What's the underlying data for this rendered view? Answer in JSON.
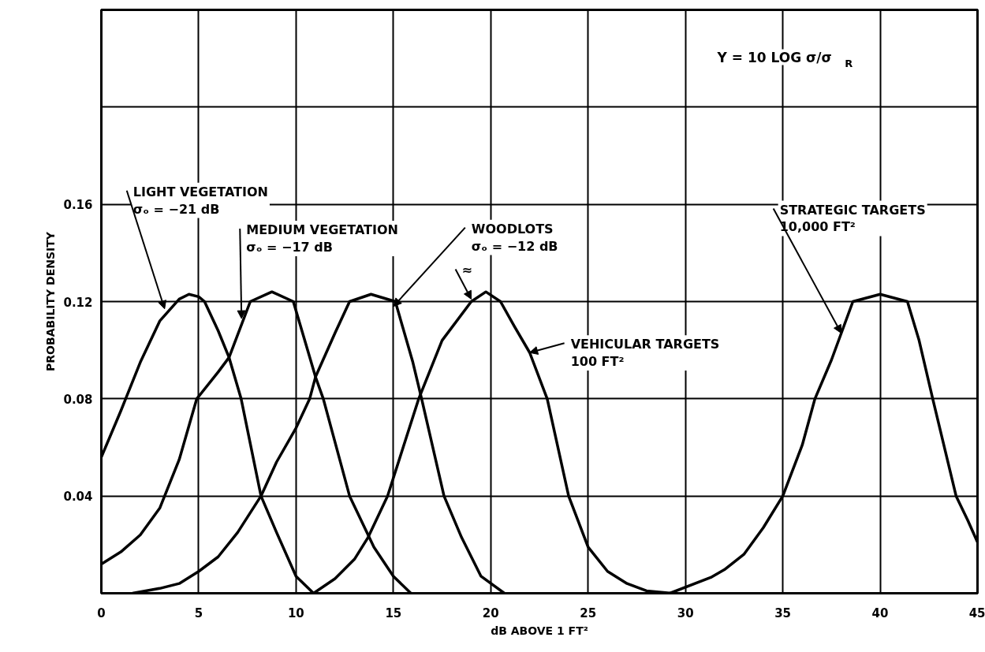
{
  "chart_data": {
    "type": "line",
    "xlabel": "dB ABOVE 1 FT²",
    "ylabel": "PROBABILITY DENSITY",
    "xlim": [
      0,
      45
    ],
    "ylim": [
      0,
      0.24
    ],
    "xticks": [
      0,
      5,
      10,
      15,
      20,
      25,
      30,
      35,
      40,
      45
    ],
    "yticks": [
      {
        "value": 0,
        "label": null
      },
      0.04,
      0.08,
      0.12,
      0.16,
      {
        "value": 0.2,
        "label": null
      },
      {
        "value": 0.24,
        "label": null
      }
    ],
    "grid": true,
    "line_style": "solid",
    "marker": "none",
    "series": [
      {
        "color": "#000000",
        "x": [
          0,
          1,
          2,
          3,
          4,
          4.5,
          5,
          5.3,
          6,
          6.56,
          7.18,
          8.2,
          9,
          10,
          10.9
        ],
        "values": [
          0.056,
          0.075,
          0.095,
          0.112,
          0.121,
          0.123,
          0.122,
          0.12,
          0.108,
          0.097,
          0.08,
          0.04,
          0.025,
          0.007,
          0
        ]
      },
      {
        "color": "#000000",
        "x": [
          0,
          1,
          2,
          3,
          3.25,
          4,
          4.9,
          6,
          6.56,
          7.65,
          8.76,
          9.86,
          11,
          11.4,
          12.75,
          14,
          15,
          15.9
        ],
        "values": [
          0.012,
          0.017,
          0.024,
          0.035,
          0.04,
          0.055,
          0.08,
          0.091,
          0.097,
          0.12,
          0.124,
          0.12,
          0.089,
          0.08,
          0.04,
          0.019,
          0.007,
          0
        ]
      },
      {
        "color": "#000000",
        "x": [
          1.6,
          3,
          4,
          5,
          6,
          7,
          8.2,
          9,
          10,
          10.7,
          11,
          12,
          12.75,
          13.85,
          15.1,
          16,
          16.45,
          17.6,
          18.5,
          19.5,
          20.7
        ],
        "values": [
          0,
          0.002,
          0.004,
          0.009,
          0.015,
          0.025,
          0.04,
          0.054,
          0.068,
          0.08,
          0.089,
          0.107,
          0.12,
          0.123,
          0.12,
          0.095,
          0.08,
          0.04,
          0.023,
          0.007,
          0
        ]
      },
      {
        "color": "#000000",
        "x": [
          10.9,
          12,
          13,
          13.7,
          14.7,
          15.5,
          16.3,
          17.5,
          19,
          19.75,
          20.5,
          21.2,
          22,
          22.9,
          24,
          25,
          26,
          27,
          28,
          29.3
        ],
        "values": [
          0,
          0.006,
          0.014,
          0.023,
          0.04,
          0.06,
          0.08,
          0.104,
          0.12,
          0.124,
          0.12,
          0.11,
          0.099,
          0.08,
          0.04,
          0.019,
          0.009,
          0.004,
          0.001,
          0
        ]
      },
      {
        "color": "#000000",
        "x": [
          29.2,
          31.3,
          32,
          33,
          34,
          35,
          36,
          36.65,
          37.5,
          38.6,
          40,
          41.4,
          42,
          42.7,
          43.9,
          44.5,
          45
        ],
        "values": [
          0,
          0.0065,
          0.0097,
          0.016,
          0.027,
          0.04,
          0.061,
          0.08,
          0.096,
          0.12,
          0.123,
          0.12,
          0.104,
          0.08,
          0.04,
          0.03,
          0.021
        ]
      }
    ],
    "annotations": [
      {
        "text": "LIGHT VEGETATION\nσₒ = −21 dB",
        "x": 3.25,
        "y": 0.117
      },
      {
        "text": "MEDIUM VEGETATION\nσₒ = −17 dB",
        "x": 7.2,
        "y": 0.113
      },
      {
        "text": "WOODLOTS\nσₒ = −12 dB",
        "x": 15.0,
        "y": 0.118
      },
      {
        "text": "≈",
        "x": 19.0,
        "y": 0.121
      },
      {
        "text": "VEHICULAR TARGETS\n100 FT²",
        "x": 22.0,
        "y": 0.099
      },
      {
        "text": "STRATEGIC TARGETS\n10,000 FT²",
        "x": 38.0,
        "y": 0.107
      },
      "Y = 10 LOG σ/σ$_{R}$"
    ]
  }
}
